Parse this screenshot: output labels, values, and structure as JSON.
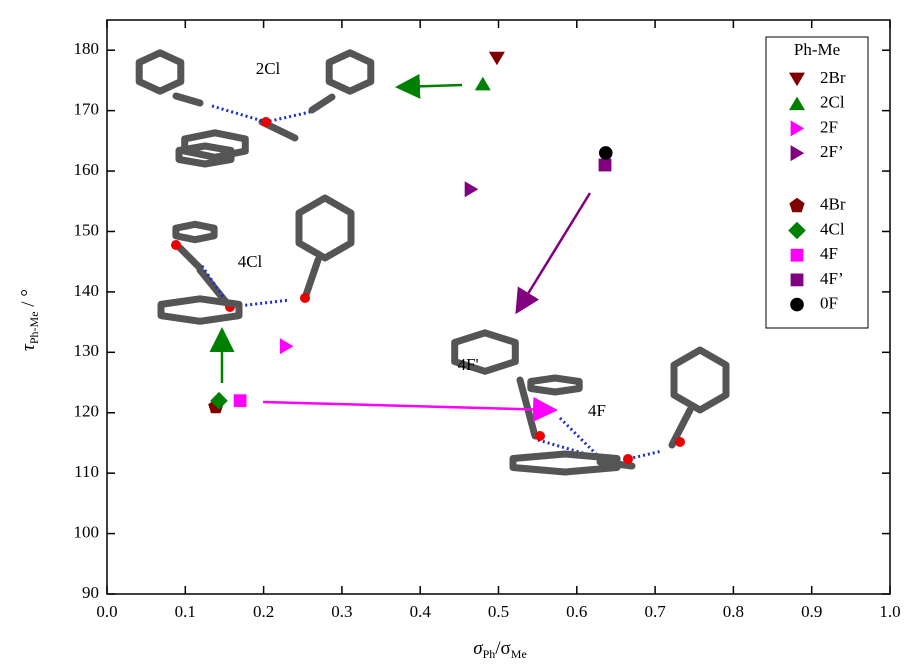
{
  "chart_data": {
    "type": "scatter",
    "xlabel": [
      "σ",
      "Ph",
      "/σ",
      "Me"
    ],
    "ylabel": [
      "τ",
      "Ph-Me",
      " / °"
    ],
    "xlim": [
      0,
      1
    ],
    "ylim": [
      90,
      185
    ],
    "xticks": [
      {
        "value": 0,
        "label": "0.0"
      },
      0.1,
      0.2,
      0.3,
      0.4,
      0.5,
      0.6,
      0.7,
      0.8,
      0.9,
      {
        "value": 1,
        "label": "1.0"
      }
    ],
    "yticks": [
      90,
      100,
      110,
      120,
      130,
      140,
      150,
      160,
      170,
      180
    ],
    "legend_title": "Ph-Me",
    "legend_position": "upper right",
    "annotations": [
      {
        "text": "2Cl",
        "color": "#008000"
      },
      {
        "text": "4Cl",
        "color": "#008000"
      },
      {
        "text": "4F'",
        "color": "#800080"
      },
      {
        "text": "4F",
        "color": "#ff00ff"
      }
    ],
    "series": [
      {
        "name": "2Br",
        "color": "#800000",
        "marker": "triangle-down",
        "x": [
          0.498
        ],
        "values": [
          178.7
        ]
      },
      {
        "name": "2Cl",
        "color": "#008000",
        "marker": "triangle-up",
        "x": [
          0.48
        ],
        "values": [
          174.4
        ]
      },
      {
        "name": "2F",
        "color": "#ff00ff",
        "marker": "triangle-right",
        "x": [
          0.229
        ],
        "values": [
          131
        ]
      },
      {
        "name": "2F’",
        "color": "#800080",
        "marker": "triangle-right",
        "x": [
          0.465
        ],
        "values": [
          157
        ]
      },
      {
        "name": "4Br",
        "color": "#800000",
        "marker": "pentagon",
        "x": [
          0.139
        ],
        "values": [
          121
        ]
      },
      {
        "name": "4Cl",
        "color": "#008000",
        "marker": "diamond",
        "x": [
          0.143
        ],
        "values": [
          122
        ]
      },
      {
        "name": "4F",
        "color": "#ff00ff",
        "marker": "square",
        "x": [
          0.17
        ],
        "values": [
          122
        ]
      },
      {
        "name": "4F’",
        "color": "#800080",
        "marker": "square",
        "x": [
          0.636
        ],
        "values": [
          161
        ]
      },
      {
        "name": "0F",
        "color": "#000000",
        "marker": "circle",
        "x": [
          0.637
        ],
        "values": [
          163
        ]
      }
    ]
  }
}
